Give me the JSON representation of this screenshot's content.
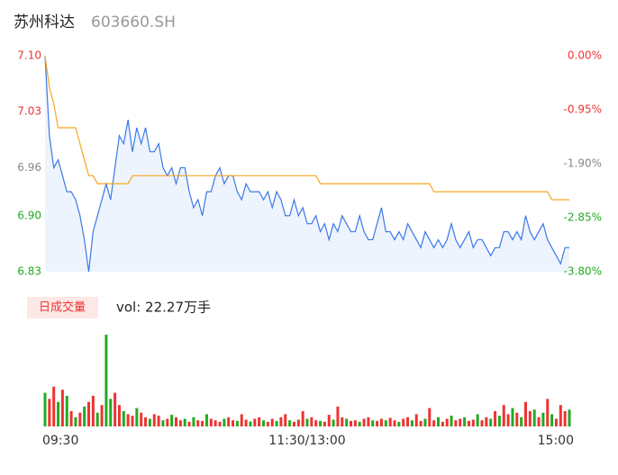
{
  "header": {
    "name": "苏州科达",
    "code": "603660.SH"
  },
  "volume_button": "日成交量",
  "volume_text": "vol: 22.27万手",
  "chart_data": [
    {
      "type": "line",
      "x": [
        0,
        2,
        4,
        6,
        8,
        10,
        12,
        14,
        16,
        18,
        20,
        22,
        24,
        26,
        28,
        30,
        32,
        34,
        36,
        38,
        40,
        42,
        44,
        46,
        48,
        50,
        52,
        54,
        56,
        58,
        60,
        62,
        64,
        66,
        68,
        70,
        72,
        74,
        76,
        78,
        80,
        82,
        84,
        86,
        88,
        90,
        92,
        94,
        96,
        98,
        100,
        102,
        104,
        106,
        108,
        110,
        112,
        114,
        116,
        118,
        120,
        122,
        124,
        126,
        128,
        130,
        132,
        134,
        136,
        138,
        140,
        142,
        144,
        146,
        148,
        150,
        152,
        154,
        156,
        158,
        160,
        162,
        164,
        166,
        168,
        170,
        172,
        174,
        176,
        178,
        180,
        182,
        184,
        186,
        188,
        190,
        192,
        194,
        196,
        198,
        200,
        202,
        204,
        206,
        208,
        210,
        212,
        214,
        216,
        218,
        220,
        222,
        224,
        226,
        228,
        230,
        232,
        234,
        236,
        238,
        240
      ],
      "xlim": [
        0,
        240
      ],
      "series": [
        {
          "color": "#3b78e7",
          "area": "#eef4fd",
          "values": [
            7.1,
            7.0,
            6.96,
            6.97,
            6.95,
            6.93,
            6.93,
            6.92,
            6.9,
            6.87,
            6.83,
            6.88,
            6.9,
            6.92,
            6.94,
            6.92,
            6.96,
            7.0,
            6.99,
            7.02,
            6.98,
            7.01,
            6.99,
            7.01,
            6.98,
            6.98,
            6.99,
            6.96,
            6.95,
            6.96,
            6.94,
            6.96,
            6.96,
            6.93,
            6.91,
            6.92,
            6.9,
            6.93,
            6.93,
            6.95,
            6.96,
            6.94,
            6.95,
            6.95,
            6.93,
            6.92,
            6.94,
            6.93,
            6.93,
            6.93,
            6.92,
            6.93,
            6.91,
            6.93,
            6.92,
            6.9,
            6.9,
            6.92,
            6.9,
            6.91,
            6.89,
            6.89,
            6.9,
            6.88,
            6.89,
            6.87,
            6.89,
            6.88,
            6.9,
            6.89,
            6.88,
            6.88,
            6.9,
            6.88,
            6.87,
            6.87,
            6.89,
            6.91,
            6.88,
            6.88,
            6.87,
            6.88,
            6.87,
            6.89,
            6.88,
            6.87,
            6.86,
            6.88,
            6.87,
            6.86,
            6.87,
            6.86,
            6.87,
            6.89,
            6.87,
            6.86,
            6.87,
            6.88,
            6.86,
            6.87,
            6.87,
            6.86,
            6.85,
            6.86,
            6.86,
            6.88,
            6.88,
            6.87,
            6.88,
            6.87,
            6.9,
            6.88,
            6.87,
            6.88,
            6.89,
            6.87,
            6.86,
            6.85,
            6.84,
            6.86,
            6.86
          ]
        },
        {
          "color": "#f5a623",
          "values": [
            7.1,
            7.06,
            7.04,
            7.01,
            7.01,
            7.01,
            7.01,
            7.01,
            6.99,
            6.97,
            6.95,
            6.95,
            6.94,
            6.94,
            6.94,
            6.94,
            6.94,
            6.94,
            6.94,
            6.94,
            6.95,
            6.95,
            6.95,
            6.95,
            6.95,
            6.95,
            6.95,
            6.95,
            6.95,
            6.95,
            6.95,
            6.95,
            6.95,
            6.95,
            6.95,
            6.95,
            6.95,
            6.95,
            6.95,
            6.95,
            6.95,
            6.95,
            6.95,
            6.95,
            6.95,
            6.95,
            6.95,
            6.95,
            6.95,
            6.95,
            6.95,
            6.95,
            6.95,
            6.95,
            6.95,
            6.95,
            6.95,
            6.95,
            6.95,
            6.95,
            6.95,
            6.95,
            6.95,
            6.94,
            6.94,
            6.94,
            6.94,
            6.94,
            6.94,
            6.94,
            6.94,
            6.94,
            6.94,
            6.94,
            6.94,
            6.94,
            6.94,
            6.94,
            6.94,
            6.94,
            6.94,
            6.94,
            6.94,
            6.94,
            6.94,
            6.94,
            6.94,
            6.94,
            6.94,
            6.93,
            6.93,
            6.93,
            6.93,
            6.93,
            6.93,
            6.93,
            6.93,
            6.93,
            6.93,
            6.93,
            6.93,
            6.93,
            6.93,
            6.93,
            6.93,
            6.93,
            6.93,
            6.93,
            6.93,
            6.93,
            6.93,
            6.93,
            6.93,
            6.93,
            6.93,
            6.93,
            6.92,
            6.92,
            6.92,
            6.92,
            6.92
          ]
        }
      ],
      "ylim": [
        6.83,
        7.1
      ],
      "yticks": [
        {
          "value": 7.1,
          "label": "7.10"
        },
        7.03,
        6.96,
        {
          "value": 6.9,
          "label": "6.90"
        },
        6.83
      ],
      "y2lim": [
        -3.8,
        0
      ],
      "y2ticks": [
        {
          "value": 0,
          "label": "0.00%"
        },
        {
          "value": -0.95,
          "label": "-0.95%"
        },
        {
          "value": -1.9,
          "label": "-1.90%"
        },
        {
          "value": -2.85,
          "label": "-2.85%"
        },
        {
          "value": -3.8,
          "label": "-3.80%"
        }
      ],
      "ytick_colors": [
        "#e33",
        "#e33",
        "#888",
        "#2a2",
        "#2a2"
      ]
    },
    {
      "type": "bar",
      "x": [
        0,
        2,
        4,
        6,
        8,
        10,
        12,
        14,
        16,
        18,
        20,
        22,
        24,
        26,
        28,
        30,
        32,
        34,
        36,
        38,
        40,
        42,
        44,
        46,
        48,
        50,
        52,
        54,
        56,
        58,
        60,
        62,
        64,
        66,
        68,
        70,
        72,
        74,
        76,
        78,
        80,
        82,
        84,
        86,
        88,
        90,
        92,
        94,
        96,
        98,
        100,
        102,
        104,
        106,
        108,
        110,
        112,
        114,
        116,
        118,
        120,
        122,
        124,
        126,
        128,
        130,
        132,
        134,
        136,
        138,
        140,
        142,
        144,
        146,
        148,
        150,
        152,
        154,
        156,
        158,
        160,
        162,
        164,
        166,
        168,
        170,
        172,
        174,
        176,
        178,
        180,
        182,
        184,
        186,
        188,
        190,
        192,
        194,
        196,
        198,
        200,
        202,
        204,
        206,
        208,
        210,
        212,
        214,
        216,
        218,
        220,
        222,
        224,
        226,
        228,
        230,
        232,
        234,
        236,
        238,
        240
      ],
      "xlim": [
        0,
        240
      ],
      "xticks": [
        {
          "value": 0,
          "label": "09:30"
        },
        {
          "value": 120,
          "label": "11:30/13:00"
        },
        {
          "value": 240,
          "label": "15:00"
        }
      ],
      "ylim": [
        0,
        3000
      ],
      "values": [
        1100,
        900,
        1300,
        800,
        1200,
        1000,
        500,
        300,
        450,
        650,
        800,
        1000,
        450,
        700,
        3000,
        900,
        1100,
        700,
        500,
        400,
        350,
        600,
        450,
        300,
        250,
        400,
        350,
        200,
        250,
        380,
        300,
        200,
        250,
        150,
        300,
        200,
        180,
        400,
        250,
        200,
        150,
        250,
        300,
        200,
        180,
        400,
        220,
        160,
        250,
        300,
        200,
        150,
        250,
        180,
        300,
        400,
        200,
        150,
        220,
        500,
        250,
        300,
        200,
        180,
        150,
        380,
        220,
        650,
        300,
        250,
        180,
        200,
        150,
        250,
        300,
        200,
        180,
        250,
        200,
        280,
        200,
        150,
        250,
        300,
        200,
        400,
        180,
        250,
        600,
        200,
        300,
        150,
        250,
        350,
        200,
        250,
        300,
        180,
        220,
        400,
        200,
        300,
        250,
        500,
        350,
        700,
        400,
        600,
        450,
        300,
        800,
        500,
        550,
        300,
        450,
        900,
        400,
        250,
        700,
        500,
        550
      ],
      "colors": [
        "#2a2",
        "#e33",
        "#e33",
        "#2a2",
        "#e33",
        "#2a2",
        "#e33",
        "#2a2",
        "#e33",
        "#2a2",
        "#e33",
        "#e33",
        "#2a2",
        "#e33",
        "#2a2",
        "#2a2",
        "#e33",
        "#e33",
        "#2a2",
        "#e33",
        "#e33",
        "#2a2",
        "#e33",
        "#e33",
        "#2a2",
        "#e33",
        "#e33",
        "#2a2",
        "#e33",
        "#2a2",
        "#e33",
        "#e33",
        "#2a2",
        "#e33",
        "#2a2",
        "#e33",
        "#e33",
        "#2a2",
        "#e33",
        "#e33",
        "#e33",
        "#2a2",
        "#e33",
        "#e33",
        "#2a2",
        "#e33",
        "#e33",
        "#2a2",
        "#e33",
        "#e33",
        "#2a2",
        "#e33",
        "#e33",
        "#2a2",
        "#e33",
        "#e33",
        "#2a2",
        "#e33",
        "#e33",
        "#e33",
        "#2a2",
        "#e33",
        "#e33",
        "#2a2",
        "#e33",
        "#e33",
        "#2a2",
        "#e33",
        "#e33",
        "#2a2",
        "#e33",
        "#e33",
        "#2a2",
        "#e33",
        "#e33",
        "#2a2",
        "#e33",
        "#e33",
        "#2a2",
        "#e33",
        "#e33",
        "#2a2",
        "#e33",
        "#e33",
        "#2a2",
        "#e33",
        "#e33",
        "#2a2",
        "#e33",
        "#e33",
        "#2a2",
        "#e33",
        "#e33",
        "#2a2",
        "#e33",
        "#e33",
        "#2a2",
        "#e33",
        "#e33",
        "#2a2",
        "#e33",
        "#e33",
        "#2a2",
        "#e33",
        "#2a2",
        "#e33",
        "#e33",
        "#2a2",
        "#e33",
        "#2a2",
        "#e33",
        "#e33",
        "#2a2",
        "#e33",
        "#2a2",
        "#e33",
        "#2a2",
        "#e33",
        "#e33",
        "#e33",
        "#2a2"
      ]
    }
  ]
}
